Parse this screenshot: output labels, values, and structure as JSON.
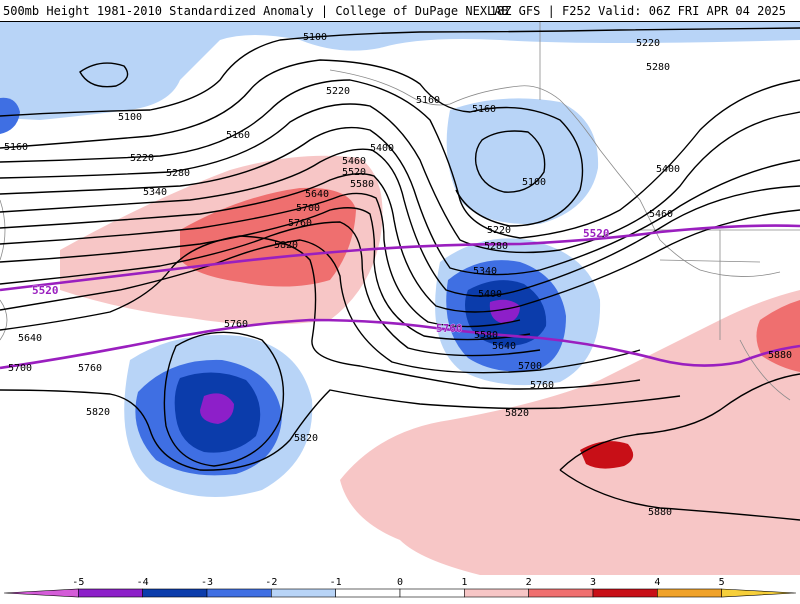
{
  "header": {
    "title_left": "500mb Height 1981-2010 Standardized Anomaly | College of DuPage NEXLAB",
    "title_right": "18Z GFS | F252 Valid: 06Z FRI APR 04 2025"
  },
  "colors": {
    "neg5": "#d45cd8",
    "neg4": "#8d1fc9",
    "neg3": "#0b3cab",
    "neg2": "#3f6fe3",
    "neg1": "#b8d4f7",
    "pos1": "#f7c6c6",
    "pos2": "#ef6f6f",
    "pos3": "#c80f17",
    "pos4": "#f0a22a",
    "pos5": "#f6cf3a",
    "highlight_contour": "#9a1fbf",
    "contour": "#000000"
  },
  "colorbar": {
    "ticks": [
      "-5",
      "-4",
      "-3",
      "-2",
      "-1",
      "0",
      "1",
      "2",
      "3",
      "4",
      "5"
    ]
  },
  "contour_labels": {
    "c5100_top": "5100",
    "c5100_left": "5100",
    "c5100_center": "5100",
    "c5160_left": "5160",
    "c5160_a": "5160",
    "c5160_b": "5160",
    "c5160_c": "5160",
    "c5220_left": "5220",
    "c5220_a": "5220",
    "c5220_right": "5220",
    "c5220_low": "5220",
    "c5280_left": "5280",
    "c5280_right": "5280",
    "c5280_low": "5280",
    "c5340_left": "5340",
    "c5340_low": "5340",
    "c5400_top": "5400",
    "c5400_right": "5400",
    "c5400_low": "5400",
    "c5460_a": "5460",
    "c5460_right": "5460",
    "c5520_a": "5520",
    "c5520_highlight_left": "5520",
    "c5520_highlight_right": "5520",
    "c5580_a": "5580",
    "c5580_low": "5580",
    "c5640_a": "5640",
    "c5640_left": "5640",
    "c5640_low": "5640",
    "c5700_a": "5700",
    "c5700_left": "5700",
    "c5700_low": "5700",
    "c5760_a": "5760",
    "c5760_b": "5760",
    "c5760_left": "5760",
    "c5760_highlight": "5760",
    "c5760_low": "5760",
    "c5820_a": "5820",
    "c5820_left": "5820",
    "c5820_b": "5820",
    "c5820_low": "5820",
    "c5880_right": "5880",
    "c5880_low": "5880"
  }
}
